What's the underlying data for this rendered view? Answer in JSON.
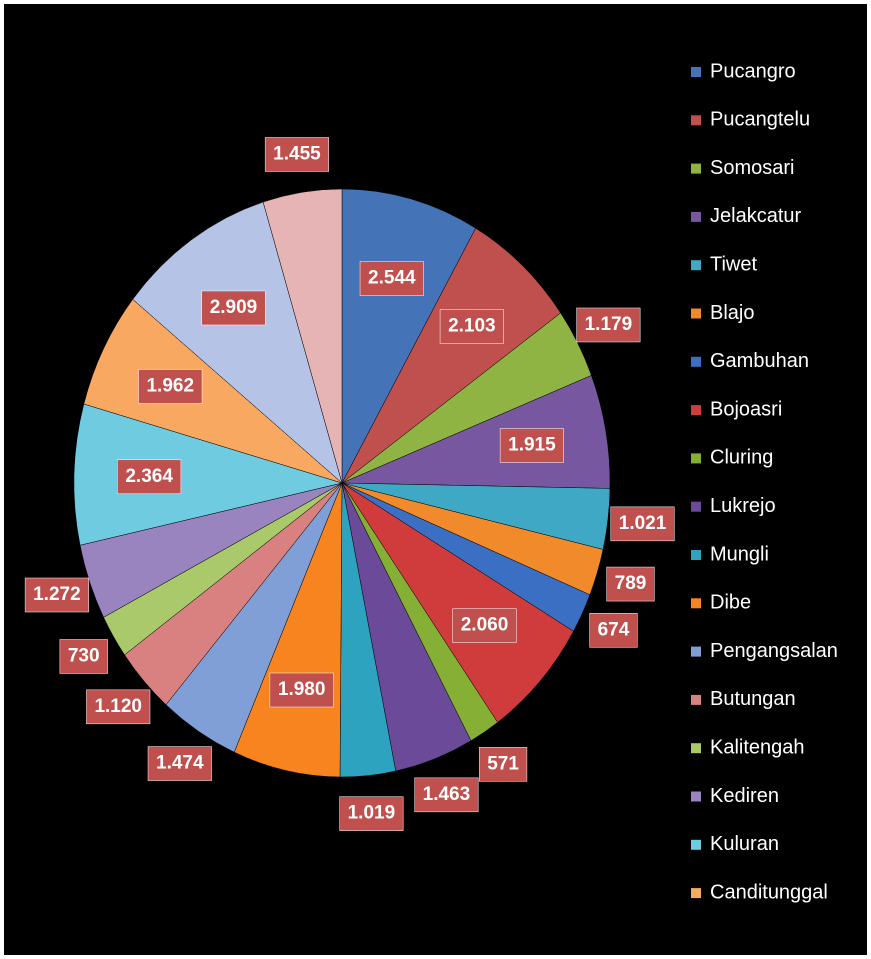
{
  "chart_data": {
    "type": "pie",
    "categories": [
      "Pucangro",
      "Pucangtelu",
      "Somosari",
      "Jelakcatur",
      "Tiwet",
      "Blajo",
      "Gambuhan",
      "Bojoasri",
      "Cluring",
      "Lukrejo",
      "Mungli",
      "Dibe",
      "Pengangsalan",
      "Butungan",
      "Kalitengah",
      "Kediren",
      "Kuluran",
      "Canditunggal",
      null,
      null
    ],
    "values": [
      2544,
      2103,
      1179,
      1915,
      1021,
      789,
      674,
      2060,
      571,
      1463,
      1019,
      1980,
      1474,
      1120,
      730,
      1272,
      2364,
      1962,
      2909,
      1455
    ],
    "value_labels": [
      "2.544",
      "2.103",
      "1.179",
      "1.915",
      "1.021",
      "789",
      "674",
      "2.060",
      "571",
      "1.463",
      "1.019",
      "1.980",
      "1.474",
      "1.120",
      "730",
      "1.272",
      "2.364",
      "1.962",
      "2.909",
      "1.455"
    ],
    "colors": [
      "#4573b8",
      "#c0504d",
      "#8fb444",
      "#7657a0",
      "#3fa8c4",
      "#f08a2a",
      "#3a6fc4",
      "#d03c3c",
      "#86b035",
      "#6b4a9a",
      "#2ea3c0",
      "#f7841e",
      "#7f9fd6",
      "#d98080",
      "#a9c96a",
      "#9a84c0",
      "#6fcbe0",
      "#f9a862",
      "#b4c3e6",
      "#e6b4b4"
    ],
    "legend": "right"
  }
}
